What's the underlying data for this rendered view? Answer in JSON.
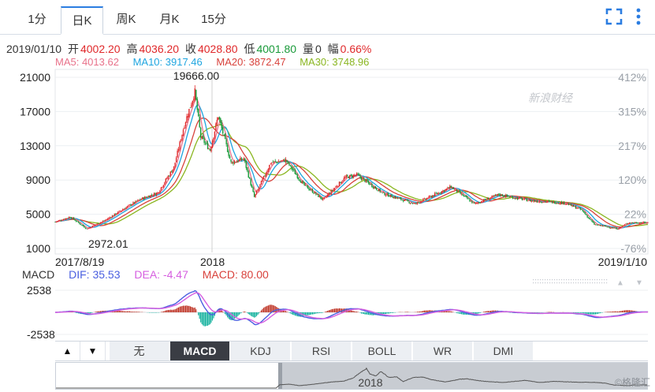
{
  "tabs": [
    {
      "label": "1分",
      "active": false
    },
    {
      "label": "日K",
      "active": true
    },
    {
      "label": "周K",
      "active": false
    },
    {
      "label": "月K",
      "active": false
    },
    {
      "label": "15分",
      "active": false
    }
  ],
  "toolbar_icons": [
    "fullscreen-icon",
    "more-vertical-icon"
  ],
  "quote": {
    "date": "2019/01/10",
    "open_label": "开",
    "open": "4002.20",
    "high_label": "高",
    "high": "4036.20",
    "close_label": "收",
    "close": "4028.80",
    "low_label": "低",
    "low": "4001.80",
    "volume_label": "量",
    "volume": "0",
    "change_label": "幅",
    "change": "0.66%"
  },
  "ma": {
    "ma5": "MA5: 4013.62",
    "ma10": "MA10: 3917.46",
    "ma20": "MA20: 3872.47",
    "ma30": "MA30: 3748.96"
  },
  "macd_info": {
    "title": "MACD",
    "dif": "DIF: 35.53",
    "dea": "DEA: -4.47",
    "macd": "MACD: 80.00"
  },
  "indicators": [
    {
      "label": "无",
      "active": false
    },
    {
      "label": "MACD",
      "active": true
    },
    {
      "label": "KDJ",
      "active": false
    },
    {
      "label": "RSI",
      "active": false
    },
    {
      "label": "BOLL",
      "active": false
    },
    {
      "label": "WR",
      "active": false
    },
    {
      "label": "DMI",
      "active": false
    }
  ],
  "arrow_buttons": [
    "▲",
    "▼"
  ],
  "watermark": "新浪财经",
  "corner_watermark": "©格隆汇",
  "navigator_label": "2018",
  "colors": {
    "up": "#e0292b",
    "down": "#1a9a3a",
    "ma5": "#e8718a",
    "ma10": "#1ea5e0",
    "ma20": "#d8423c",
    "ma30": "#8ab620",
    "dif": "#4a5fe0",
    "dea": "#d65fe0",
    "accent": "#2b7de1"
  },
  "chart_data": {
    "type": "candlestick",
    "x_range": [
      "2017/8/19",
      "2019/1/10"
    ],
    "x_tick_labels": [
      "2017/8/19",
      "2018",
      "2019/1/10"
    ],
    "y_ticks": [
      21000,
      17000,
      13000,
      9000,
      5000,
      1000
    ],
    "pct_ticks": [
      "412%",
      "315%",
      "217%",
      "120%",
      "22%",
      "-76%"
    ],
    "ylim": [
      1000,
      21000
    ],
    "annotations": [
      {
        "label": "19666.00",
        "date": "2017-12-17",
        "value": 19666
      },
      {
        "label": "2972.01",
        "date": "2017-09-15",
        "value": 2972
      }
    ],
    "price_path": [
      {
        "date": "2017-08-19",
        "value": 4100
      },
      {
        "date": "2017-09-01",
        "value": 4700
      },
      {
        "date": "2017-09-15",
        "value": 3300
      },
      {
        "date": "2017-10-01",
        "value": 4300
      },
      {
        "date": "2017-10-20",
        "value": 5900
      },
      {
        "date": "2017-11-01",
        "value": 6800
      },
      {
        "date": "2017-11-15",
        "value": 7500
      },
      {
        "date": "2017-11-29",
        "value": 10500
      },
      {
        "date": "2017-12-08",
        "value": 15500
      },
      {
        "date": "2017-12-17",
        "value": 19300
      },
      {
        "date": "2017-12-22",
        "value": 14000
      },
      {
        "date": "2017-12-30",
        "value": 12500
      },
      {
        "date": "2018-01-06",
        "value": 16500
      },
      {
        "date": "2018-01-17",
        "value": 11000
      },
      {
        "date": "2018-01-28",
        "value": 11500
      },
      {
        "date": "2018-02-06",
        "value": 7000
      },
      {
        "date": "2018-02-20",
        "value": 11000
      },
      {
        "date": "2018-03-05",
        "value": 11300
      },
      {
        "date": "2018-03-20",
        "value": 8500
      },
      {
        "date": "2018-04-06",
        "value": 6700
      },
      {
        "date": "2018-04-25",
        "value": 9300
      },
      {
        "date": "2018-05-05",
        "value": 9600
      },
      {
        "date": "2018-05-28",
        "value": 7400
      },
      {
        "date": "2018-06-24",
        "value": 6200
      },
      {
        "date": "2018-07-25",
        "value": 8200
      },
      {
        "date": "2018-08-14",
        "value": 6200
      },
      {
        "date": "2018-09-04",
        "value": 7300
      },
      {
        "date": "2018-09-30",
        "value": 6600
      },
      {
        "date": "2018-10-31",
        "value": 6300
      },
      {
        "date": "2018-11-14",
        "value": 5500
      },
      {
        "date": "2018-11-25",
        "value": 3800
      },
      {
        "date": "2018-12-15",
        "value": 3300
      },
      {
        "date": "2018-12-24",
        "value": 4000
      },
      {
        "date": "2019-01-10",
        "value": 4028
      }
    ],
    "macd": {
      "y_ticks": [
        2538,
        -2538
      ],
      "series": [
        "DIF",
        "DEA",
        "MACD"
      ]
    }
  }
}
